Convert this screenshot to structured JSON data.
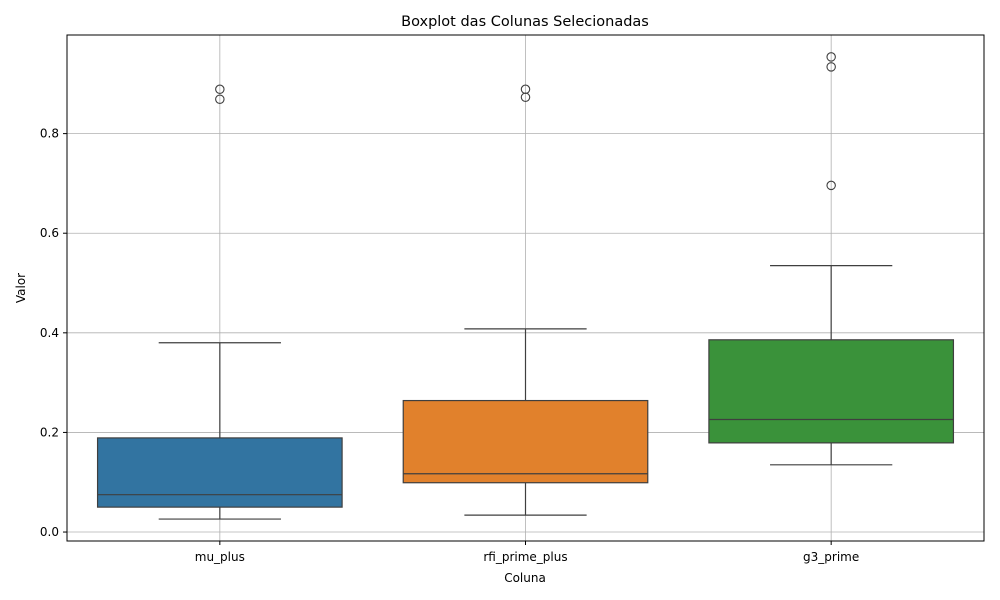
{
  "chart_data": {
    "type": "box",
    "title": "Boxplot das Colunas Selecionadas",
    "xlabel": "Coluna",
    "ylabel": "Valor",
    "categories": [
      "mu_plus",
      "rfi_prime_plus",
      "g3_prime"
    ],
    "ylim": [
      -0.018,
      0.998
    ],
    "yticks": [
      0.0,
      0.2,
      0.4,
      0.6,
      0.8
    ],
    "ytick_labels": [
      "0.0",
      "0.2",
      "0.4",
      "0.6",
      "0.8"
    ],
    "grid": true,
    "boxes": [
      {
        "name": "mu_plus",
        "color": "#3274a1",
        "whisker_low": 0.026,
        "q1": 0.05,
        "median": 0.075,
        "q3": 0.189,
        "whisker_high": 0.38,
        "outliers": [
          0.869,
          0.889
        ]
      },
      {
        "name": "rfi_prime_plus",
        "color": "#e1812c",
        "whisker_low": 0.034,
        "q1": 0.099,
        "median": 0.117,
        "q3": 0.264,
        "whisker_high": 0.408,
        "outliers": [
          0.873,
          0.889
        ]
      },
      {
        "name": "g3_prime",
        "color": "#3a923a",
        "whisker_low": 0.135,
        "q1": 0.179,
        "median": 0.226,
        "q3": 0.386,
        "whisker_high": 0.535,
        "outliers": [
          0.696,
          0.934,
          0.954
        ]
      }
    ]
  }
}
